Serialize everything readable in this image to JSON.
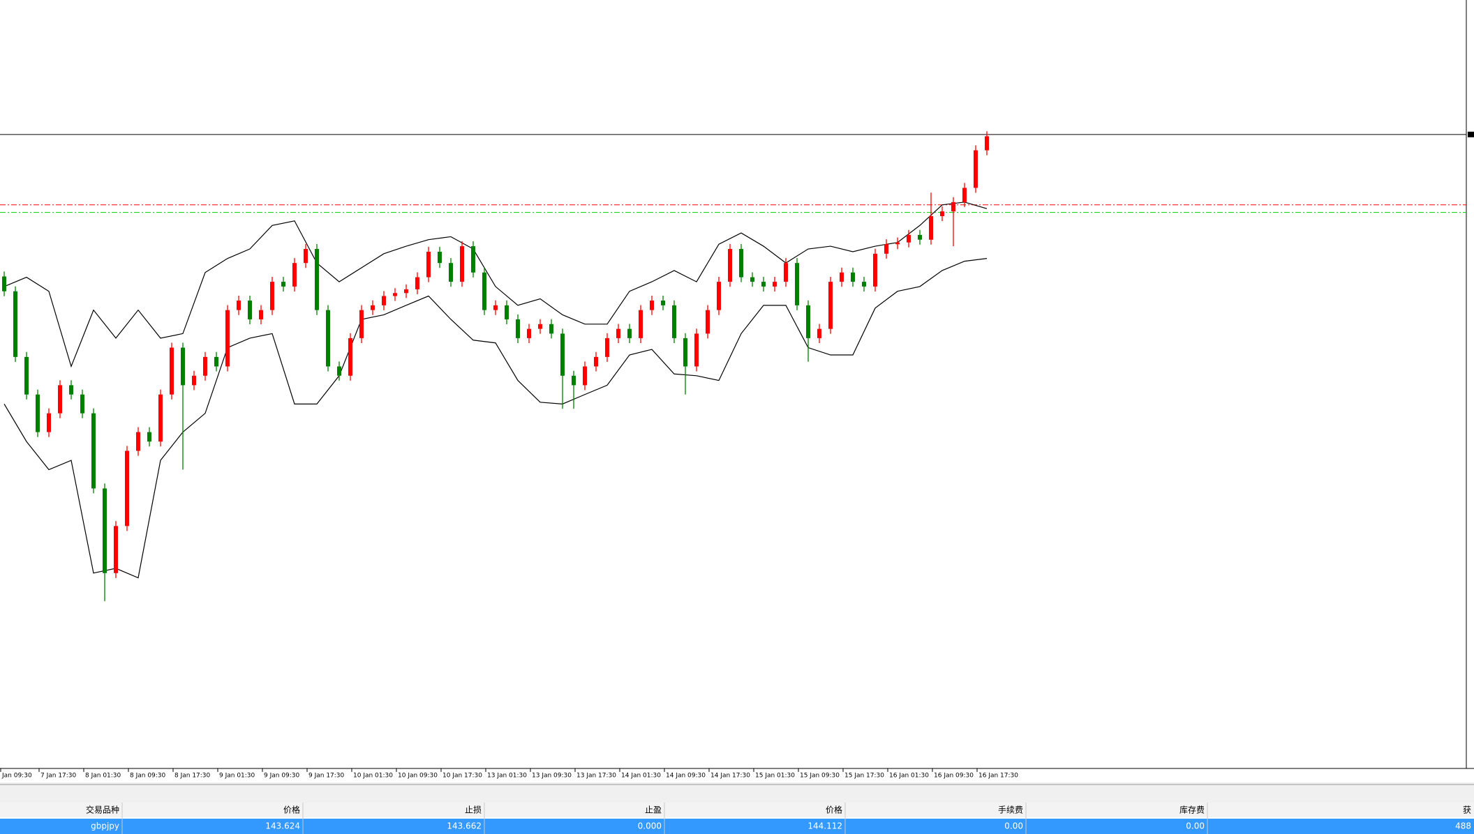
{
  "chart_data": {
    "type": "candlestick",
    "x_labels": [
      "Jan 09:30",
      "7 Jan 17:30",
      "8 Jan 01:30",
      "8 Jan 09:30",
      "8 Jan 17:30",
      "9 Jan 01:30",
      "9 Jan 09:30",
      "9 Jan 17:30",
      "10 Jan 01:30",
      "10 Jan 09:30",
      "10 Jan 17:30",
      "13 Jan 01:30",
      "13 Jan 09:30",
      "13 Jan 17:30",
      "14 Jan 01:30",
      "14 Jan 09:30",
      "14 Jan 17:30",
      "15 Jan 01:30",
      "15 Jan 09:30",
      "15 Jan 17:30",
      "16 Jan 01:30",
      "16 Jan 09:30",
      "16 Jan 17:30"
    ],
    "open": [
      143.3,
      143.225,
      142.893,
      142.703,
      142.513,
      142.608,
      142.75,
      142.703,
      142.608,
      142.228,
      141.8,
      142.038,
      142.418,
      142.513,
      142.465,
      142.703,
      142.94,
      142.75,
      142.798,
      142.893,
      142.845,
      143.13,
      143.178,
      143.083,
      143.13,
      143.273,
      143.249,
      143.368,
      143.439,
      143.13,
      142.845,
      142.798,
      142.988,
      143.13,
      143.154,
      143.201,
      143.216,
      143.235,
      143.296,
      143.425,
      143.368,
      143.273,
      143.453,
      143.32,
      143.13,
      143.154,
      143.083,
      142.988,
      143.035,
      143.059,
      143.011,
      142.798,
      142.75,
      142.845,
      142.893,
      142.988,
      143.035,
      142.988,
      143.13,
      143.178,
      143.154,
      142.988,
      142.845,
      143.011,
      143.13,
      143.273,
      143.439,
      143.296,
      143.273,
      143.249,
      143.273,
      143.368,
      143.154,
      142.988,
      143.035,
      143.273,
      143.32,
      143.273,
      143.249,
      143.415,
      143.463,
      143.472,
      143.51,
      143.486,
      143.605,
      143.629,
      143.676,
      143.748,
      143.938
    ],
    "high": [
      143.325,
      143.25,
      142.918,
      142.728,
      142.633,
      142.775,
      142.775,
      142.728,
      142.633,
      142.253,
      142.063,
      142.443,
      142.538,
      142.538,
      142.728,
      142.965,
      142.965,
      142.823,
      142.918,
      142.918,
      143.155,
      143.203,
      143.203,
      143.155,
      143.298,
      143.298,
      143.393,
      143.464,
      143.464,
      143.155,
      142.87,
      143.013,
      143.155,
      143.179,
      143.226,
      143.241,
      143.26,
      143.321,
      143.45,
      143.45,
      143.393,
      143.478,
      143.478,
      143.345,
      143.179,
      143.179,
      143.108,
      143.06,
      143.084,
      143.084,
      143.036,
      142.823,
      142.87,
      142.918,
      143.013,
      143.06,
      143.06,
      143.155,
      143.203,
      143.203,
      143.179,
      143.013,
      143.036,
      143.155,
      143.298,
      143.464,
      143.464,
      143.321,
      143.298,
      143.298,
      143.393,
      143.393,
      143.179,
      143.06,
      143.298,
      143.345,
      143.345,
      143.298,
      143.44,
      143.488,
      143.497,
      143.535,
      143.535,
      143.724,
      143.654,
      143.701,
      143.773,
      143.963,
      144.034
    ],
    "low": [
      143.2,
      142.868,
      142.678,
      142.488,
      142.488,
      142.583,
      142.678,
      142.583,
      142.203,
      141.658,
      141.775,
      142.013,
      142.393,
      142.44,
      142.44,
      142.678,
      142.323,
      142.725,
      142.773,
      142.82,
      142.82,
      143.105,
      143.058,
      143.058,
      143.105,
      143.224,
      143.224,
      143.343,
      143.105,
      142.82,
      142.773,
      142.773,
      142.963,
      143.105,
      143.129,
      143.176,
      143.191,
      143.21,
      143.271,
      143.343,
      143.248,
      143.248,
      143.295,
      143.105,
      143.105,
      143.058,
      142.963,
      142.963,
      143.01,
      142.986,
      142.631,
      142.631,
      142.725,
      142.82,
      142.868,
      142.963,
      142.963,
      142.963,
      143.105,
      143.129,
      142.963,
      142.703,
      142.82,
      142.986,
      143.105,
      143.248,
      143.271,
      143.248,
      143.224,
      143.224,
      143.248,
      143.129,
      142.869,
      142.963,
      143.01,
      143.248,
      143.248,
      143.224,
      143.224,
      143.39,
      143.438,
      143.447,
      143.461,
      143.461,
      143.58,
      143.453,
      143.651,
      143.723,
      143.913
    ],
    "close": [
      143.225,
      142.893,
      142.703,
      142.513,
      142.608,
      142.75,
      142.703,
      142.608,
      142.228,
      141.8,
      142.038,
      142.418,
      142.513,
      142.465,
      142.703,
      142.94,
      142.75,
      142.798,
      142.893,
      142.845,
      143.13,
      143.178,
      143.083,
      143.13,
      143.273,
      143.249,
      143.368,
      143.439,
      143.13,
      142.845,
      142.798,
      142.988,
      143.13,
      143.154,
      143.201,
      143.216,
      143.235,
      143.296,
      143.425,
      143.368,
      143.273,
      143.453,
      143.32,
      143.13,
      143.154,
      143.083,
      142.988,
      143.035,
      143.059,
      143.011,
      142.798,
      142.75,
      142.845,
      142.893,
      142.988,
      143.035,
      142.988,
      143.13,
      143.178,
      143.154,
      142.988,
      142.845,
      143.011,
      143.13,
      143.273,
      143.439,
      143.296,
      143.273,
      143.249,
      143.273,
      143.368,
      143.154,
      142.988,
      143.035,
      143.273,
      143.32,
      143.273,
      143.249,
      143.415,
      143.463,
      143.472,
      143.51,
      143.486,
      143.605,
      143.629,
      143.676,
      143.748,
      143.938,
      144.009
    ],
    "up_color": "#ff0000",
    "down_color": "#008000",
    "upper_band": {
      "color": "#000000",
      "values": [
        143.249,
        143.296,
        143.225,
        142.845,
        143.13,
        142.988,
        143.13,
        142.988,
        143.011,
        143.32,
        143.391,
        143.439,
        143.558,
        143.581,
        143.368,
        143.273,
        143.344,
        143.415,
        143.453,
        143.486,
        143.501,
        143.439,
        143.249,
        143.154,
        143.187,
        143.106,
        143.059,
        143.059,
        143.225,
        143.273,
        143.33,
        143.273,
        143.463,
        143.52,
        143.453,
        143.368,
        143.439,
        143.453,
        143.425,
        143.453,
        143.472,
        143.558,
        143.662,
        143.676,
        143.643
      ]
    },
    "lower_band": {
      "color": "#000000",
      "values": [
        142.655,
        142.465,
        142.323,
        142.37,
        141.8,
        141.824,
        141.776,
        142.37,
        142.513,
        142.608,
        142.94,
        142.988,
        143.011,
        142.655,
        142.655,
        142.798,
        143.083,
        143.106,
        143.154,
        143.201,
        143.083,
        142.978,
        142.964,
        142.774,
        142.664,
        142.655,
        142.703,
        142.75,
        142.903,
        142.931,
        142.807,
        142.798,
        142.774,
        143.011,
        143.154,
        143.154,
        142.94,
        142.903,
        142.903,
        143.14,
        143.225,
        143.249,
        143.33,
        143.377,
        143.391
      ]
    },
    "levels": {
      "bid": 144.018,
      "stop_loss": 143.662,
      "open_price": 143.624
    },
    "ylim": [
      140.812,
      144.698
    ]
  },
  "terminal": {
    "columns": [
      "交易品种",
      "价格",
      "止损",
      "止盈",
      "价格",
      "手续费",
      "库存费",
      "获"
    ],
    "rows": [
      [
        "gbpjpy",
        "143.624",
        "143.662",
        "0.000",
        "144.112",
        "0.00",
        "0.00",
        "488"
      ]
    ]
  }
}
